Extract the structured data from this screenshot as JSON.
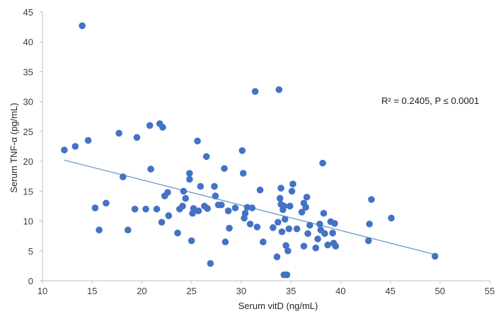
{
  "chart_data": {
    "type": "scatter",
    "title": "",
    "xlabel": "Serum vitD (ng/mL)",
    "ylabel": "Serum TNF-α (pg/mL)",
    "xlim": [
      10,
      55
    ],
    "ylim": [
      0,
      45
    ],
    "xticks": [
      "10",
      "15",
      "20",
      "25",
      "30",
      "35",
      "40",
      "45",
      "50",
      "55"
    ],
    "yticks": [
      "0",
      "5",
      "10",
      "15",
      "20",
      "25",
      "30",
      "35",
      "40",
      "45"
    ],
    "annotation": "R² = 0.2405, P ≤ 0.0001",
    "colors": {
      "point": "#4472C4",
      "trendline": "#7096C4",
      "axis": "#BFBFBF"
    },
    "trendline": {
      "x": [
        12.2,
        49.5
      ],
      "y": [
        20.2,
        4.4
      ]
    },
    "points": [
      [
        12.2,
        21.9
      ],
      [
        13.3,
        22.5
      ],
      [
        14.0,
        42.7
      ],
      [
        14.6,
        23.5
      ],
      [
        15.3,
        12.2
      ],
      [
        15.7,
        8.5
      ],
      [
        16.4,
        13.0
      ],
      [
        17.7,
        24.7
      ],
      [
        18.1,
        17.4
      ],
      [
        18.6,
        8.5
      ],
      [
        19.3,
        12.0
      ],
      [
        19.5,
        24.0
      ],
      [
        20.4,
        12.0
      ],
      [
        20.8,
        26.0
      ],
      [
        20.9,
        18.7
      ],
      [
        21.5,
        12.0
      ],
      [
        21.8,
        26.3
      ],
      [
        22.0,
        9.8
      ],
      [
        22.1,
        25.7
      ],
      [
        22.3,
        14.2
      ],
      [
        22.6,
        14.8
      ],
      [
        22.7,
        10.9
      ],
      [
        23.6,
        8.0
      ],
      [
        23.8,
        12.0
      ],
      [
        24.1,
        12.5
      ],
      [
        24.2,
        15.0
      ],
      [
        24.4,
        13.8
      ],
      [
        24.8,
        18.0
      ],
      [
        24.8,
        17.0
      ],
      [
        25.0,
        6.7
      ],
      [
        25.1,
        11.3
      ],
      [
        25.2,
        12.1
      ],
      [
        25.6,
        23.4
      ],
      [
        25.7,
        11.7
      ],
      [
        25.9,
        15.8
      ],
      [
        26.3,
        12.5
      ],
      [
        26.5,
        20.8
      ],
      [
        26.6,
        12.1
      ],
      [
        26.9,
        2.9
      ],
      [
        27.3,
        15.8
      ],
      [
        27.4,
        14.2
      ],
      [
        27.7,
        12.7
      ],
      [
        28.0,
        12.7
      ],
      [
        28.3,
        18.8
      ],
      [
        28.4,
        6.5
      ],
      [
        28.7,
        11.7
      ],
      [
        28.8,
        8.8
      ],
      [
        29.4,
        12.2
      ],
      [
        30.1,
        21.8
      ],
      [
        30.2,
        18.0
      ],
      [
        30.3,
        10.5
      ],
      [
        30.4,
        11.3
      ],
      [
        30.6,
        12.3
      ],
      [
        30.9,
        9.5
      ],
      [
        31.1,
        12.2
      ],
      [
        31.4,
        31.7
      ],
      [
        31.6,
        9.0
      ],
      [
        31.9,
        15.2
      ],
      [
        32.2,
        6.5
      ],
      [
        33.2,
        8.9
      ],
      [
        33.6,
        4.0
      ],
      [
        33.7,
        9.8
      ],
      [
        33.8,
        32.0
      ],
      [
        33.9,
        13.8
      ],
      [
        34.0,
        15.5
      ],
      [
        34.0,
        12.8
      ],
      [
        34.1,
        8.2
      ],
      [
        34.2,
        11.9
      ],
      [
        34.3,
        12.5
      ],
      [
        34.3,
        1.0
      ],
      [
        34.4,
        10.3
      ],
      [
        34.6,
        1.0
      ],
      [
        34.5,
        5.9
      ],
      [
        34.7,
        5.0
      ],
      [
        34.8,
        8.7
      ],
      [
        34.9,
        12.5
      ],
      [
        35.1,
        15.0
      ],
      [
        35.2,
        16.2
      ],
      [
        35.6,
        8.7
      ],
      [
        36.1,
        11.5
      ],
      [
        36.3,
        5.8
      ],
      [
        36.3,
        13.0
      ],
      [
        36.5,
        12.3
      ],
      [
        36.6,
        14.0
      ],
      [
        36.7,
        7.9
      ],
      [
        36.9,
        9.3
      ],
      [
        37.5,
        5.5
      ],
      [
        37.7,
        7.0
      ],
      [
        37.9,
        9.5
      ],
      [
        38.0,
        8.5
      ],
      [
        38.2,
        19.7
      ],
      [
        38.3,
        11.3
      ],
      [
        38.4,
        7.9
      ],
      [
        38.7,
        6.0
      ],
      [
        39.0,
        9.9
      ],
      [
        39.2,
        8.0
      ],
      [
        39.3,
        6.3
      ],
      [
        39.4,
        9.6
      ],
      [
        39.5,
        5.8
      ],
      [
        42.8,
        6.7
      ],
      [
        42.9,
        9.5
      ],
      [
        43.1,
        13.6
      ],
      [
        45.1,
        10.5
      ],
      [
        49.5,
        4.1
      ]
    ]
  }
}
